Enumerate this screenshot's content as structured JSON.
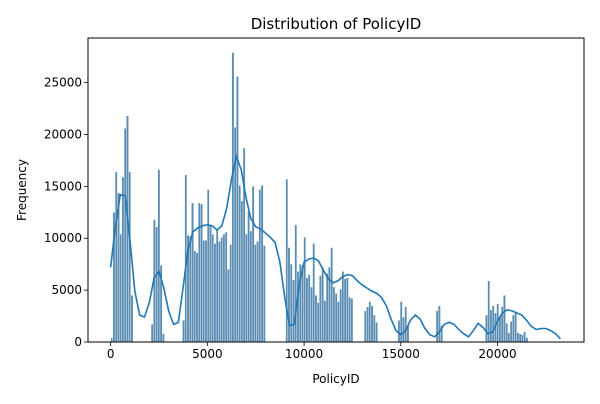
{
  "chart_data": {
    "type": "bar",
    "title": "Distribution of PolicyID",
    "xlabel": "PolicyID",
    "ylabel": "Frequency",
    "xlim": [
      -1170,
      24470
    ],
    "ylim": [
      0,
      29300
    ],
    "xticks": [
      0,
      5000,
      10000,
      15000,
      20000
    ],
    "yticks": [
      0,
      5000,
      10000,
      15000,
      20000,
      25000
    ],
    "xtick_labels": [
      "0",
      "5000",
      "10000",
      "15000",
      "20000"
    ],
    "ytick_labels": [
      "0",
      "5000",
      "10000",
      "15000",
      "20000",
      "25000"
    ],
    "bin_width": 116,
    "grid": false,
    "legend": "none",
    "bar_color": "#5b8db3",
    "bar_edge_color": "#ffffff",
    "kde_color": "#1f77b4",
    "bins_x": [
      58,
      174,
      290,
      406,
      522,
      638,
      754,
      870,
      986,
      1102,
      1218,
      1334,
      1450,
      1566,
      1682,
      1798,
      1914,
      2030,
      2146,
      2262,
      2378,
      2494,
      2610,
      2726,
      2842,
      2958,
      3074,
      3190,
      3306,
      3422,
      3538,
      3654,
      3770,
      3886,
      4002,
      4118,
      4234,
      4350,
      4466,
      4582,
      4698,
      4814,
      4930,
      5046,
      5162,
      5278,
      5394,
      5510,
      5626,
      5742,
      5858,
      5974,
      6090,
      6206,
      6322,
      6438,
      6554,
      6670,
      6786,
      6902,
      7018,
      7134,
      7250,
      7366,
      7482,
      7598,
      7714,
      7830,
      7946,
      8062,
      8178,
      8294,
      8410,
      8526,
      8642,
      8758,
      8874,
      8990,
      9106,
      9222,
      9338,
      9454,
      9570,
      9686,
      9802,
      9918,
      10034,
      10150,
      10266,
      10382,
      10498,
      10614,
      10730,
      10846,
      10962,
      11078,
      11194,
      11310,
      11426,
      11542,
      11658,
      11774,
      11890,
      12006,
      12122,
      12238,
      12354,
      12470,
      12586,
      12702,
      12818,
      12934,
      13050,
      13166,
      13282,
      13398,
      13514,
      13630,
      13746,
      13862,
      13978,
      14094,
      14210,
      14326,
      14442,
      14558,
      14674,
      14790,
      14906,
      15022,
      15138,
      15254,
      15370,
      15486,
      15602,
      15718,
      15834,
      15950,
      16066,
      16182,
      16298,
      16414,
      16530,
      16646,
      16762,
      16878,
      16994,
      17110,
      17226,
      17342,
      17458,
      17574,
      17690,
      17806,
      17922,
      18038,
      18154,
      18270,
      18386,
      18502,
      18618,
      18734,
      18850,
      18966,
      19082,
      19198,
      19314,
      19430,
      19546,
      19662,
      19778,
      19894,
      20010,
      20126,
      20242,
      20358,
      20474,
      20590,
      20706,
      20822,
      20938,
      21054,
      21170,
      21286,
      21402,
      21518,
      21634,
      21750,
      21866,
      21982,
      22098,
      22214,
      22330,
      22446,
      22562,
      22678,
      22794,
      22910,
      23026,
      23142
    ],
    "values": [
      400,
      12500,
      16400,
      14400,
      10400,
      15900,
      20600,
      21800,
      16400,
      4500,
      0,
      0,
      0,
      0,
      0,
      0,
      0,
      0,
      1700,
      11800,
      11100,
      16600,
      7400,
      800,
      0,
      0,
      0,
      0,
      0,
      0,
      0,
      0,
      2100,
      16100,
      10300,
      10200,
      13400,
      8800,
      8600,
      13400,
      13300,
      9800,
      9800,
      14700,
      11200,
      10400,
      9500,
      10900,
      9700,
      10100,
      10400,
      10600,
      7000,
      9400,
      27900,
      20700,
      25600,
      15100,
      13600,
      18700,
      10400,
      12600,
      10700,
      15000,
      9400,
      9700,
      14700,
      15100,
      9300,
      0,
      0,
      0,
      0,
      0,
      0,
      0,
      0,
      0,
      15700,
      9100,
      7500,
      6000,
      11300,
      6800,
      7500,
      7400,
      10100,
      6200,
      6500,
      5300,
      9500,
      4500,
      3800,
      6400,
      7200,
      4000,
      6600,
      7200,
      9100,
      5300,
      4700,
      3900,
      5100,
      6800,
      6100,
      6200,
      4300,
      4200,
      0,
      0,
      0,
      0,
      0,
      3000,
      3400,
      3900,
      3500,
      2600,
      1900,
      0,
      0,
      0,
      0,
      0,
      0,
      0,
      0,
      0,
      2100,
      3900,
      2400,
      3400,
      1600,
      0,
      0,
      0,
      0,
      0,
      0,
      0,
      0,
      0,
      0,
      0,
      0,
      3000,
      3500,
      1600,
      0,
      0,
      0,
      0,
      0,
      0,
      0,
      0,
      0,
      0,
      0,
      0,
      0,
      0,
      0,
      0,
      0,
      0,
      0,
      2600,
      5900,
      3100,
      3500,
      2800,
      3700,
      2500,
      3400,
      4500,
      1800,
      900,
      2000,
      2600,
      2900,
      900,
      800,
      700,
      1000,
      400,
      0,
      0,
      0,
      0,
      0,
      0,
      0,
      0,
      0,
      0,
      0,
      0,
      0,
      0,
      0
    ],
    "kde_x": [
      0,
      250,
      500,
      750,
      1000,
      1250,
      1500,
      1750,
      2000,
      2250,
      2500,
      2750,
      3000,
      3250,
      3500,
      3750,
      4000,
      4250,
      4500,
      4750,
      5000,
      5250,
      5500,
      5750,
      6000,
      6250,
      6500,
      6750,
      7000,
      7250,
      7500,
      7750,
      8000,
      8250,
      8500,
      8750,
      9000,
      9250,
      9500,
      9750,
      10000,
      10250,
      10500,
      10750,
      11000,
      11250,
      11500,
      11750,
      12000,
      12250,
      12500,
      12750,
      13000,
      13250,
      13500,
      13750,
      14000,
      14250,
      14500,
      14750,
      15000,
      15250,
      15500,
      15750,
      16000,
      16250,
      16500,
      16750,
      17000,
      17250,
      17500,
      17750,
      18000,
      18250,
      18500,
      18750,
      19000,
      19250,
      19500,
      19750,
      20000,
      20250,
      20500,
      20750,
      21000,
      21250,
      21500,
      21750,
      22000,
      22250,
      22500,
      22750,
      23000,
      23250
    ],
    "kde_y": [
      7200,
      11200,
      14200,
      14100,
      9800,
      4900,
      2600,
      2400,
      3800,
      6200,
      6800,
      5200,
      3000,
      1700,
      1900,
      5300,
      8900,
      10600,
      11000,
      11200,
      11300,
      11200,
      10800,
      11200,
      12900,
      15700,
      17900,
      16600,
      13900,
      11900,
      11100,
      10900,
      10500,
      10100,
      9600,
      7700,
      4300,
      1600,
      1700,
      5600,
      7700,
      8000,
      8100,
      7800,
      6900,
      6100,
      5700,
      5900,
      6300,
      6500,
      6400,
      5900,
      5500,
      5200,
      4900,
      4700,
      4300,
      3500,
      2200,
      1100,
      700,
      1100,
      2100,
      2600,
      2200,
      1300,
      700,
      500,
      1000,
      1700,
      1900,
      1700,
      1200,
      800,
      500,
      1100,
      1800,
      1400,
      800,
      1000,
      2000,
      2800,
      3100,
      3000,
      2800,
      2600,
      2100,
      1500,
      1200,
      1300,
      1300,
      1100,
      800,
      300
    ]
  }
}
